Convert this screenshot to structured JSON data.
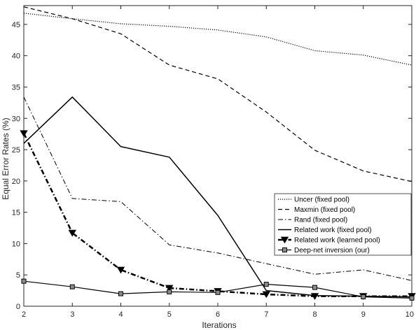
{
  "chart_data": {
    "type": "line",
    "xlabel": "Iterations",
    "ylabel": "Equal Error Rates (%)",
    "xlim": [
      2,
      10
    ],
    "ylim": [
      0,
      48
    ],
    "x_ticks": [
      "2",
      "3",
      "4",
      "5",
      "6",
      "7",
      "8",
      "9",
      "10"
    ],
    "y_ticks": [
      "0",
      "5",
      "10",
      "15",
      "20",
      "25",
      "30",
      "35",
      "40",
      "45"
    ],
    "legend_position": "lower-right",
    "x": [
      2,
      3,
      4,
      5,
      6,
      7,
      8,
      9,
      10
    ],
    "series": [
      {
        "name": "Uncer (fixed pool)",
        "dash": "dotted",
        "width": 1.2,
        "marker": "none",
        "values": [
          46.8,
          45.9,
          45.1,
          44.7,
          44.1,
          43.0,
          40.8,
          40.1,
          38.5
        ]
      },
      {
        "name": "Maxmin (fixed pool)",
        "dash": "dashed",
        "width": 1.2,
        "marker": "none",
        "values": [
          47.8,
          45.9,
          43.5,
          38.5,
          36.3,
          31.0,
          24.9,
          21.6,
          19.9
        ]
      },
      {
        "name": "Rand (fixed pool)",
        "dash": "dashdot",
        "width": 1.0,
        "marker": "none",
        "values": [
          33.4,
          17.2,
          16.7,
          9.8,
          8.5,
          6.8,
          5.1,
          5.8,
          4.1
        ]
      },
      {
        "name": "Related work (fixed pool)",
        "dash": "solid",
        "width": 1.5,
        "marker": "none",
        "values": [
          26.0,
          33.4,
          25.5,
          23.8,
          14.5,
          2.5,
          1.7,
          1.6,
          1.5
        ]
      },
      {
        "name": "Related work (learned pool)",
        "dash": "dashdot",
        "width": 2.5,
        "marker": "triangle-down",
        "values": [
          27.6,
          11.7,
          5.8,
          2.9,
          2.4,
          1.9,
          1.6,
          1.6,
          1.6
        ]
      },
      {
        "name": "Deep-net inversion (our)",
        "dash": "solid",
        "width": 1.2,
        "marker": "square",
        "values": [
          4.0,
          3.1,
          2.0,
          2.3,
          2.2,
          3.5,
          3.0,
          1.5,
          1.3
        ]
      }
    ]
  }
}
